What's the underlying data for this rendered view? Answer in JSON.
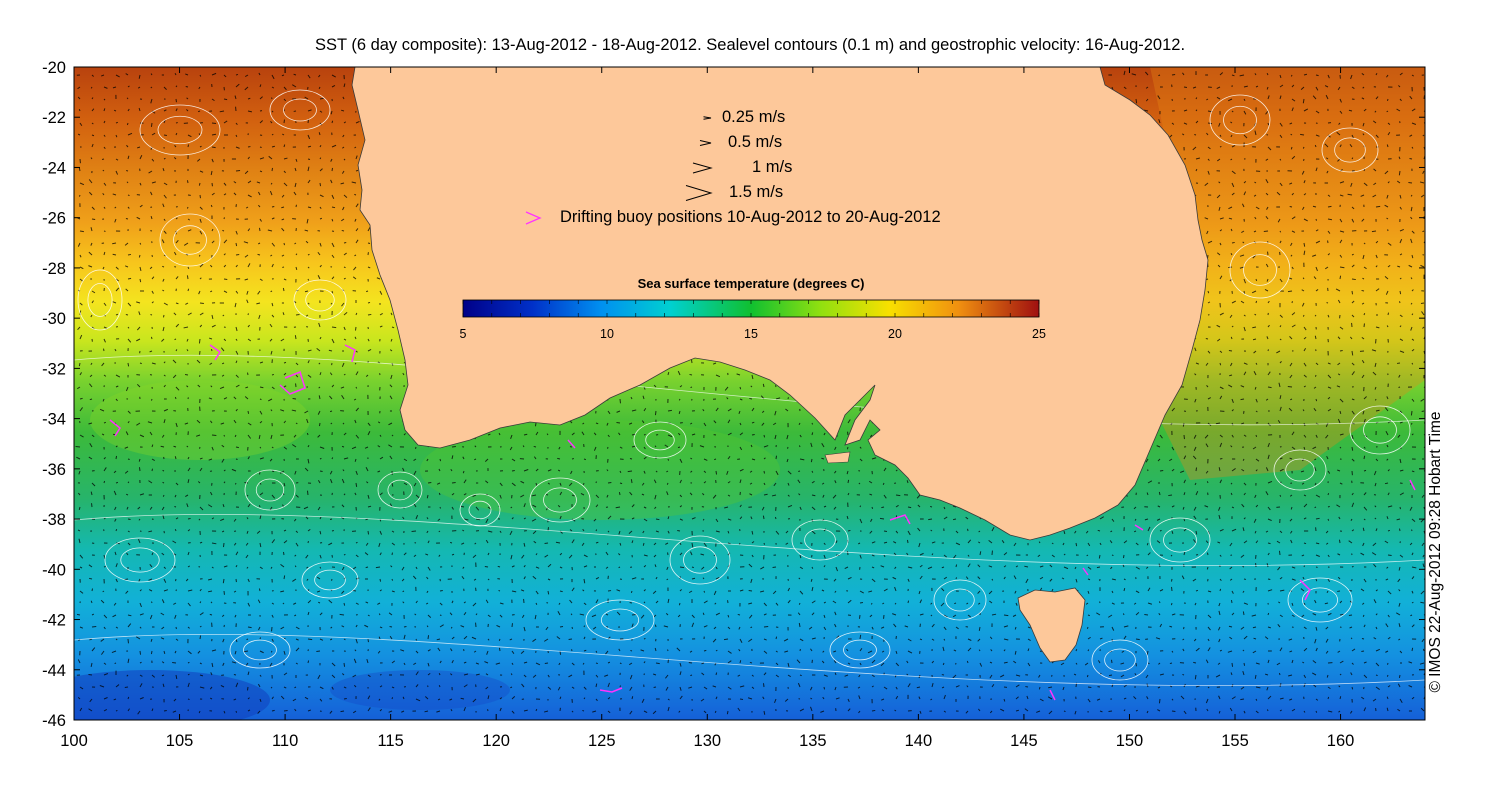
{
  "title": "SST (6 day composite): 13-Aug-2012 - 18-Aug-2012. Sealevel contours (0.1 m) and geostrophic velocity: 16-Aug-2012.",
  "credit": "© IMOS 22-Aug-2012 09:28 Hobart Time",
  "axes": {
    "xlim": [
      100,
      164
    ],
    "ylim": [
      -46,
      -20
    ],
    "x_ticks": [
      100,
      105,
      110,
      115,
      120,
      125,
      130,
      135,
      140,
      145,
      150,
      155,
      160
    ],
    "y_ticks": [
      -20,
      -22,
      -24,
      -26,
      -28,
      -30,
      -32,
      -34,
      -36,
      -38,
      -40,
      -42,
      -44,
      -46
    ],
    "x_tick_labels": [
      "100",
      "105",
      "110",
      "115",
      "120",
      "125",
      "130",
      "135",
      "140",
      "145",
      "150",
      "155",
      "160"
    ],
    "y_tick_labels": [
      "-20",
      "-22",
      "-24",
      "-26",
      "-28",
      "-30",
      "-32",
      "-34",
      "-36",
      "-38",
      "-40",
      "-42",
      "-44",
      "-46"
    ]
  },
  "velocity_legend": [
    {
      "speed": 0.25,
      "label": "0.25 m/s"
    },
    {
      "speed": 0.5,
      "label": "0.5 m/s"
    },
    {
      "speed": 1,
      "label": "1 m/s"
    },
    {
      "speed": 1.5,
      "label": "1.5 m/s"
    }
  ],
  "buoy_legend": {
    "label": "Drifting buoy positions 10-Aug-2012 to 20-Aug-2012",
    "color": "#ff33ff"
  },
  "colorbar": {
    "title": "Sea surface temperature (degrees C)",
    "min": 5,
    "max": 25,
    "tick_values": [
      5,
      10,
      15,
      20,
      25
    ],
    "tick_labels": [
      "5",
      "10",
      "15",
      "20",
      "25"
    ]
  },
  "colors": {
    "land": "#fdc89a",
    "contour": "#ffffff",
    "arrow": "#000000",
    "buoy": "#ff33ff"
  }
}
